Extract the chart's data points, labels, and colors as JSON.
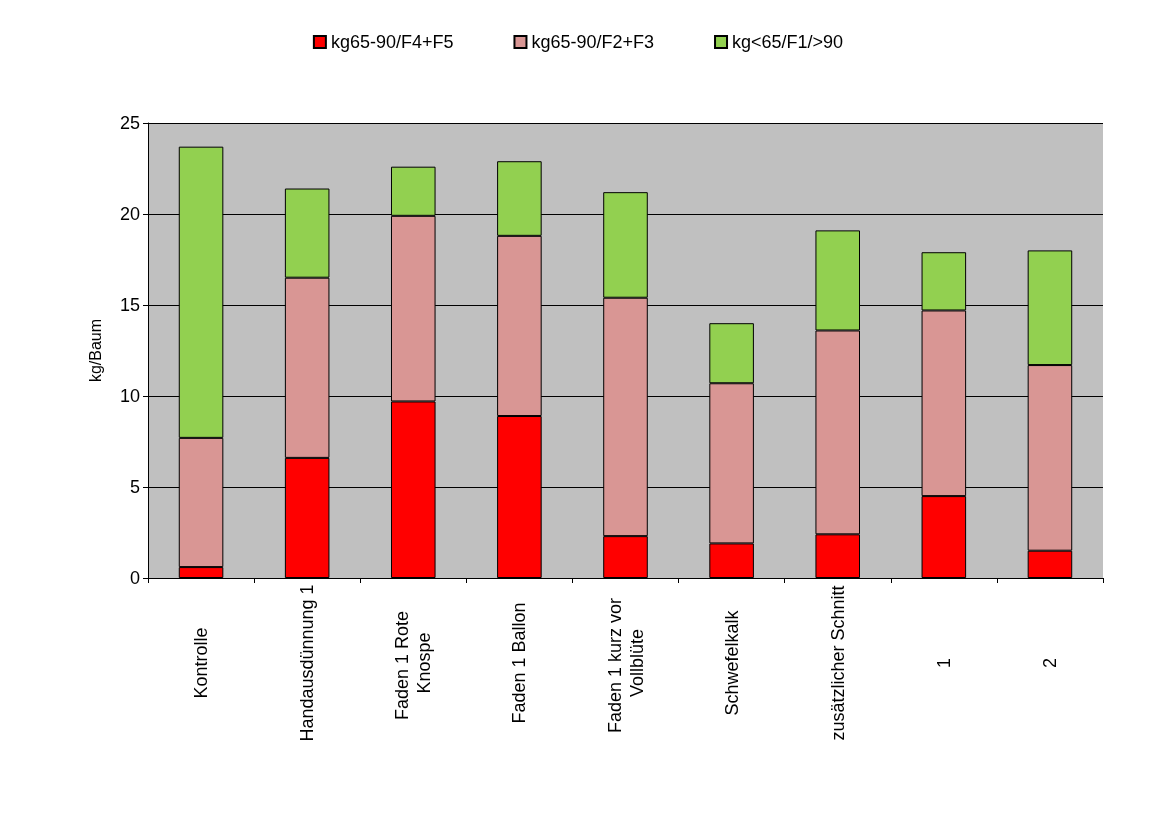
{
  "chart_data": {
    "type": "bar",
    "stacked": true,
    "ylabel": "kg/Baum",
    "categories": [
      "Kontrolle",
      "Handausdünnung 1",
      "Faden 1 Rote Knospe",
      "Faden 1 Ballon",
      "Faden 1 kurz vor Vollblüte",
      "Schwefelkalk",
      "zusätzlicher Schnitt",
      "1",
      "2"
    ],
    "series": [
      {
        "name": "kg65-90/F4+F5",
        "color": "#ff0000",
        "values": [
          0.6,
          6.6,
          9.7,
          8.9,
          2.3,
          1.9,
          2.4,
          4.5,
          1.5
        ]
      },
      {
        "name": "kg65-90/F2+F3",
        "color": "#d99694",
        "values": [
          7.1,
          9.9,
          10.2,
          9.9,
          13.1,
          8.8,
          11.2,
          10.2,
          10.2
        ]
      },
      {
        "name": "kg<65/F1/>90",
        "color": "#92d050",
        "values": [
          16.0,
          4.9,
          2.7,
          4.1,
          5.8,
          3.3,
          5.5,
          3.2,
          6.3
        ]
      }
    ],
    "ylim": [
      0,
      25
    ],
    "yticks": [
      0,
      5,
      10,
      15,
      20,
      25
    ],
    "grid": "y",
    "legend": "top"
  }
}
